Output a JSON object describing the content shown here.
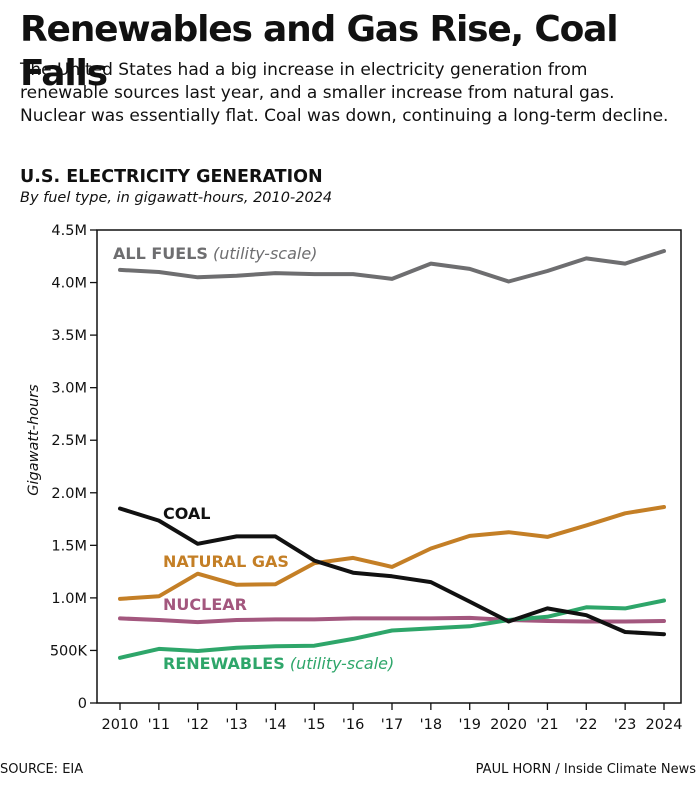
{
  "header": {
    "title": "Renewables and Gas Rise, Coal Falls",
    "subtitle": "The United States had a big increase in electricity generation from renewable sources last year, and a smaller increase from natural gas. Nuclear was essentially flat. Coal was down, continuing a long-term decline."
  },
  "footer": {
    "source": "SOURCE: EIA",
    "credit": "PAUL HORN / Inside Climate News"
  },
  "chart_data": {
    "type": "line",
    "title": "U.S. ELECTRICITY GENERATION",
    "subtitle": "By fuel type, in gigawatt-hours, 2010-2024",
    "ylabel": "Gigawatt-hours",
    "xlabel": "",
    "x": [
      2010,
      2011,
      2012,
      2013,
      2014,
      2015,
      2016,
      2017,
      2018,
      2019,
      2020,
      2021,
      2022,
      2023,
      2024
    ],
    "x_tick_labels": [
      "2010",
      "'11",
      "'12",
      "'13",
      "'14",
      "'15",
      "'16",
      "'17",
      "'18",
      "'19",
      "2020",
      "'21",
      "'22",
      "'23",
      "2024"
    ],
    "ylim": [
      0,
      4500000
    ],
    "y_ticks": [
      0,
      500000,
      1000000,
      1500000,
      2000000,
      2500000,
      3000000,
      3500000,
      4000000,
      4500000
    ],
    "y_tick_labels": [
      "0",
      "500K",
      "1.0M",
      "1.5M",
      "2.0M",
      "2.5M",
      "3.0M",
      "3.5M",
      "4.0M",
      "4.5M"
    ],
    "grid": false,
    "series": [
      {
        "name": "ALL FUELS",
        "note": "(utility-scale)",
        "color": "#6e6e70",
        "values": [
          4120000,
          4100000,
          4050000,
          4065000,
          4090000,
          4080000,
          4080000,
          4035000,
          4180000,
          4130000,
          4010000,
          4110000,
          4230000,
          4180000,
          4300000
        ]
      },
      {
        "name": "COAL",
        "note": "",
        "color": "#111111",
        "values": [
          1850000,
          1735000,
          1515000,
          1585000,
          1585000,
          1355000,
          1240000,
          1205000,
          1150000,
          965000,
          775000,
          900000,
          835000,
          675000,
          655000
        ]
      },
      {
        "name": "NATURAL GAS",
        "note": "",
        "color": "#c47f26",
        "values": [
          990000,
          1015000,
          1230000,
          1125000,
          1130000,
          1330000,
          1380000,
          1295000,
          1470000,
          1590000,
          1625000,
          1580000,
          1690000,
          1805000,
          1865000
        ]
      },
      {
        "name": "NUCLEAR",
        "note": "",
        "color": "#a3577e",
        "values": [
          805000,
          790000,
          770000,
          790000,
          795000,
          795000,
          805000,
          805000,
          805000,
          810000,
          790000,
          780000,
          775000,
          775000,
          780000
        ]
      },
      {
        "name": "RENEWABLES",
        "note": "(utility-scale)",
        "color": "#2ea66a",
        "values": [
          430000,
          515000,
          495000,
          525000,
          540000,
          545000,
          610000,
          690000,
          710000,
          730000,
          790000,
          820000,
          910000,
          900000,
          975000
        ]
      }
    ]
  }
}
